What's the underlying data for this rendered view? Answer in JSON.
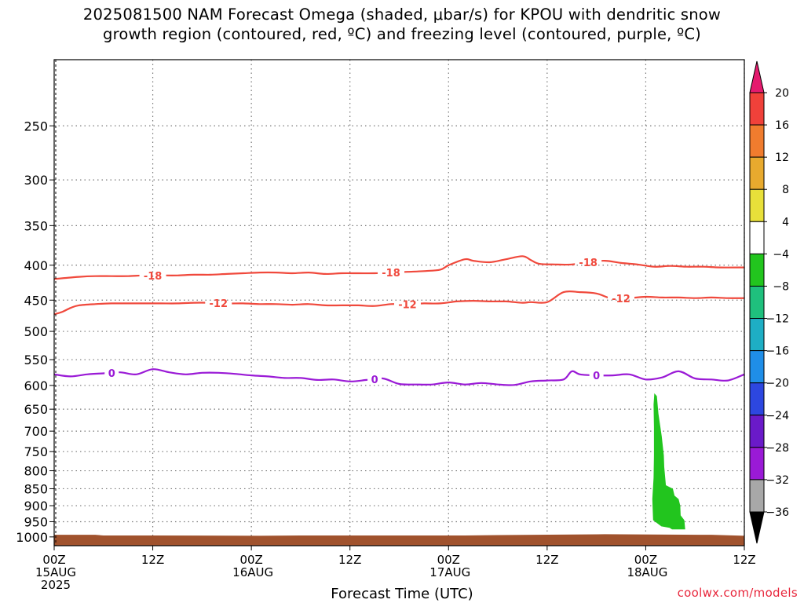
{
  "title_line1": "2025081500 NAM Forecast Omega (shaded, μbar/s) for KPOU with dendritic snow",
  "title_line2": "growth region (contoured, red, ºC) and freezing level (contoured, purple, ºC)",
  "xlabel": "Forecast Time (UTC)",
  "credit": "coolwx.com/models",
  "colors": {
    "dgz_contour": "#f0493c",
    "freezing_contour": "#9a1ad6",
    "terrain": "#a0522d",
    "omega_shade": "#22c51e",
    "grid": "#777777"
  },
  "chart_data": {
    "type": "time-height",
    "x_unit": "hours from 2025-08-15 00Z",
    "xlim": [
      0,
      84
    ],
    "ylim_hpa": [
      200,
      1030
    ],
    "y_scale": "log-pressure",
    "grid": "dotted",
    "y_ticks": [
      "250",
      "300",
      "350",
      "400",
      "450",
      "500",
      "550",
      "600",
      "650",
      "700",
      "750",
      "800",
      "850",
      "900",
      "950",
      "1000"
    ],
    "x_ticks": [
      {
        "line1": "00Z",
        "line2": "15AUG",
        "line3": "2025"
      },
      {
        "line1": "12Z",
        "line2": "",
        "line3": ""
      },
      {
        "line1": "00Z",
        "line2": "16AUG",
        "line3": ""
      },
      {
        "line1": "12Z",
        "line2": "",
        "line3": ""
      },
      {
        "line1": "00Z",
        "line2": "17AUG",
        "line3": ""
      },
      {
        "line1": "12Z",
        "line2": "",
        "line3": ""
      },
      {
        "line1": "00Z",
        "line2": "18AUG",
        "line3": ""
      },
      {
        "line1": "12Z",
        "line2": "",
        "line3": ""
      }
    ],
    "contours": [
      {
        "level": "-18",
        "color": "#f0493c",
        "x": [
          0,
          1,
          3,
          5,
          7,
          9,
          11,
          13,
          15,
          17,
          19,
          21,
          23,
          25,
          27,
          29,
          31,
          33,
          35,
          37,
          39,
          41,
          43,
          45,
          47,
          48,
          50,
          51,
          53,
          55,
          57,
          58,
          59,
          61,
          63,
          65,
          67,
          69,
          71,
          73,
          75,
          77,
          79,
          81,
          84
        ],
        "p": [
          419,
          418,
          416,
          415,
          415,
          415,
          414,
          414,
          414,
          413,
          413,
          412,
          411,
          410,
          410,
          411,
          410,
          412,
          411,
          411,
          411,
          410,
          409,
          408,
          406,
          400,
          392,
          394,
          396,
          392,
          388,
          393,
          398,
          399,
          399,
          396,
          394,
          397,
          399,
          402,
          401,
          402,
          402,
          403,
          403
        ],
        "label_x": [
          12,
          41,
          65
        ]
      },
      {
        "level": "-12",
        "color": "#f0493c",
        "x": [
          0,
          1,
          2,
          3,
          5,
          7,
          9,
          11,
          13,
          15,
          17,
          19,
          21,
          23,
          25,
          27,
          29,
          31,
          33,
          35,
          37,
          39,
          41,
          43,
          45,
          47,
          49,
          51,
          53,
          55,
          57,
          58,
          60,
          62,
          64,
          66,
          68,
          70,
          72,
          74,
          76,
          78,
          80,
          82,
          84
        ],
        "p": [
          472,
          468,
          462,
          458,
          456,
          455,
          455,
          455,
          455,
          455,
          454,
          454,
          455,
          455,
          456,
          456,
          457,
          456,
          458,
          458,
          458,
          459,
          456,
          456,
          455,
          455,
          452,
          451,
          452,
          452,
          454,
          453,
          453,
          438,
          438,
          440,
          448,
          447,
          445,
          446,
          446,
          447,
          446,
          447,
          447
        ],
        "label_x": [
          20,
          43,
          69
        ]
      },
      {
        "level": "0",
        "color": "#9a1ad6",
        "x": [
          0,
          2,
          4,
          6,
          8,
          10,
          12,
          14,
          16,
          18,
          20,
          22,
          24,
          26,
          28,
          30,
          32,
          34,
          36,
          38,
          40,
          42,
          44,
          46,
          48,
          50,
          52,
          54,
          56,
          58,
          60,
          62,
          63,
          64,
          66,
          68,
          70,
          72,
          74,
          76,
          78,
          80,
          82,
          84
        ],
        "p": [
          578,
          582,
          578,
          576,
          574,
          578,
          568,
          574,
          578,
          575,
          575,
          577,
          580,
          582,
          585,
          585,
          589,
          588,
          592,
          589,
          586,
          597,
          598,
          598,
          594,
          598,
          595,
          598,
          599,
          592,
          590,
          588,
          572,
          578,
          580,
          580,
          578,
          588,
          584,
          572,
          586,
          588,
          590,
          578
        ],
        "label_x": [
          7,
          39,
          66
        ]
      }
    ],
    "terrain_hpa": {
      "x": [
        0,
        5,
        6,
        12,
        25,
        30,
        42,
        50,
        53,
        67,
        80,
        84
      ],
      "p": [
        993,
        993,
        995,
        995,
        996,
        995,
        995,
        995,
        994,
        991,
        993,
        996
      ]
    },
    "shaded_regions": [
      {
        "omega_bin": "-8 to -4",
        "color": "#22c51e",
        "outline": [
          [
            73.05,
            616
          ],
          [
            73.35,
            622
          ],
          [
            73.55,
            660
          ],
          [
            73.95,
            712
          ],
          [
            74.2,
            760
          ],
          [
            74.25,
            790
          ],
          [
            74.45,
            840
          ],
          [
            75.3,
            850
          ],
          [
            75.5,
            870
          ],
          [
            76.0,
            880
          ],
          [
            76.2,
            900
          ],
          [
            76.25,
            930
          ],
          [
            76.7,
            945
          ],
          [
            76.8,
            975
          ],
          [
            75.2,
            975
          ],
          [
            74.9,
            970
          ],
          [
            73.9,
            965
          ],
          [
            72.9,
            945
          ],
          [
            72.8,
            880
          ],
          [
            72.95,
            820
          ],
          [
            73.0,
            760
          ],
          [
            73.0,
            690
          ],
          [
            72.95,
            640
          ]
        ]
      }
    ],
    "colorbar": {
      "type": "color scale",
      "labels": [
        "20",
        "16",
        "12",
        "8",
        "4",
        "−4",
        "−8",
        "−12",
        "−16",
        "−20",
        "−24",
        "−28",
        "−32",
        "−36"
      ],
      "colors": [
        "#e41a6e",
        "#f0413a",
        "#f07c2e",
        "#e8aa2e",
        "#e8e03a",
        "#ffffff",
        "#22c51e",
        "#1fc07d",
        "#1eaec4",
        "#1f8ee8",
        "#2d47e0",
        "#6a1ac9",
        "#9a1ad6",
        "#a8a8a8",
        "#000000"
      ]
    }
  }
}
